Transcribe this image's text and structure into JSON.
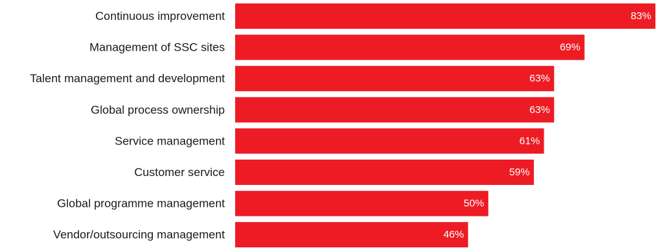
{
  "chart_data": {
    "type": "bar",
    "orientation": "horizontal",
    "categories": [
      "Continuous improvement",
      "Management of SSC sites",
      "Talent management and development",
      "Global process ownership",
      "Service management",
      "Customer service",
      "Global programme management",
      "Vendor/outsourcing management"
    ],
    "values": [
      83,
      69,
      63,
      63,
      61,
      59,
      50,
      46
    ],
    "value_labels": [
      "83%",
      "69%",
      "63%",
      "63%",
      "61%",
      "59%",
      "50%",
      "46%"
    ],
    "xlim": [
      0,
      83
    ],
    "grid": false,
    "legend": "none"
  },
  "colors": {
    "bar": "#ed1c24",
    "label_text": "#1a1a1a",
    "value_text": "#ffffff"
  }
}
